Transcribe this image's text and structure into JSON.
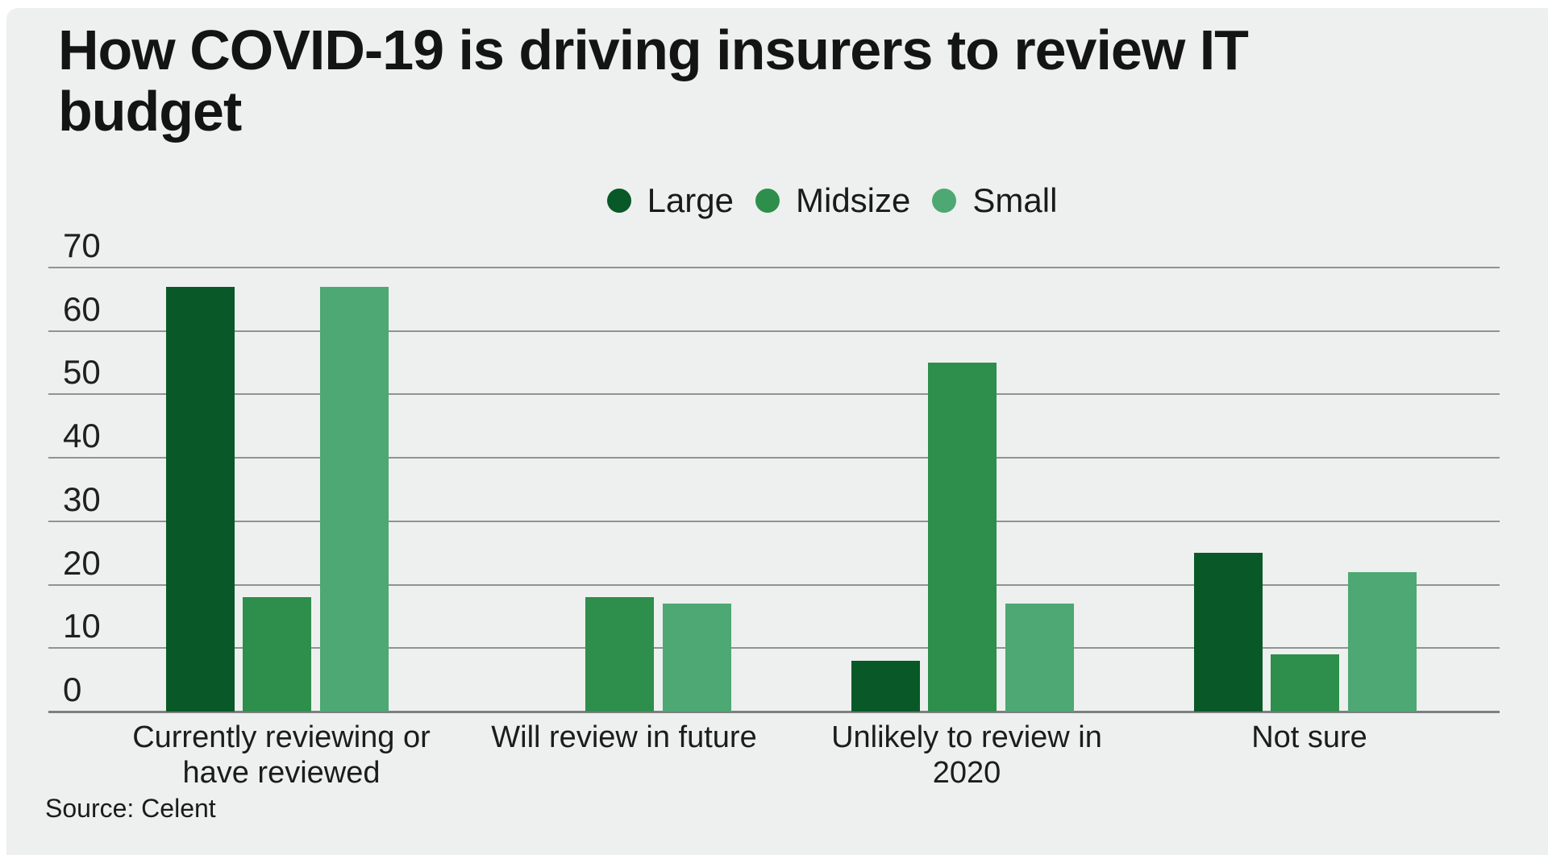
{
  "chart_data": {
    "type": "bar",
    "title": "How COVID-19 is driving insurers to review IT budget",
    "title_lines": [
      "How COVID-19 is driving insurers to review IT",
      "budget"
    ],
    "source": "Source: Celent",
    "legend": [
      "Large",
      "Midsize",
      "Small"
    ],
    "legend_position": "top-center",
    "categories": [
      "Currently reviewing or have reviewed",
      "Will review in future",
      "Unlikely to review in 2020",
      "Not sure"
    ],
    "category_label_lines": [
      [
        "Currently reviewing or",
        "have reviewed"
      ],
      [
        "Will review in future"
      ],
      [
        "Unlikely to review in",
        "2020"
      ],
      [
        "Not sure"
      ]
    ],
    "series": [
      {
        "name": "Large",
        "color": "#085927",
        "values": [
          67,
          null,
          8,
          25
        ]
      },
      {
        "name": "Midsize",
        "color": "#2e8e4b",
        "values": [
          18,
          18,
          55,
          9
        ]
      },
      {
        "name": "Small",
        "color": "#4da873",
        "values": [
          67,
          17,
          17,
          22
        ]
      }
    ],
    "y_axis": {
      "min": 0,
      "max": 70,
      "ticks": [
        0,
        10,
        20,
        30,
        40,
        50,
        60,
        70
      ]
    },
    "grid": true,
    "style": {
      "background": "#ffffff",
      "panel_background": "#edf0ee",
      "gridline_color": "#8f9493",
      "baseline_color": "#7b807f",
      "text_color": "#1a1a1a"
    }
  }
}
